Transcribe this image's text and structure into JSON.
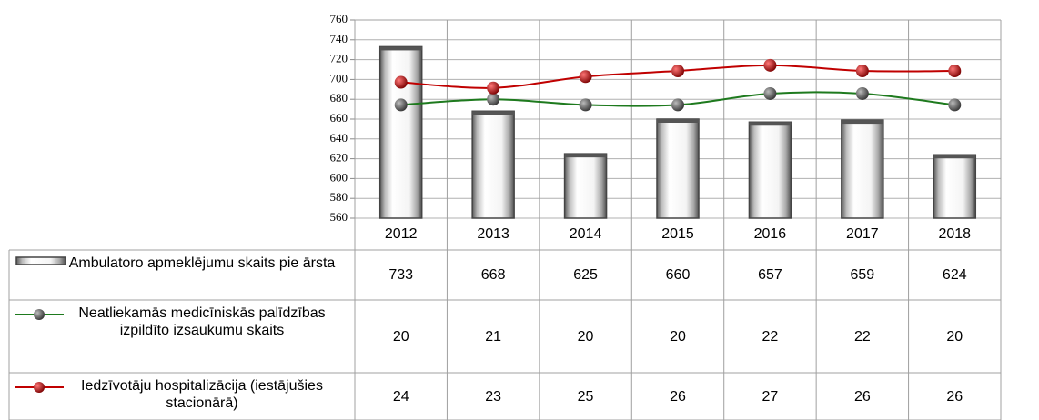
{
  "chart_data": {
    "type": "combo",
    "categories": [
      "2012",
      "2013",
      "2014",
      "2015",
      "2016",
      "2017",
      "2018"
    ],
    "series": [
      {
        "name": "Ambulatoro apmeklējumu skaits pie ārsta",
        "type": "bar",
        "color": "#808080",
        "values": [
          733,
          668,
          625,
          660,
          657,
          659,
          624
        ]
      },
      {
        "name": "Neatliekamās medicīniskās palīdzības izpildīto izsaukumu skaits",
        "type": "line",
        "axis": "y2",
        "color": "#1e7a1e",
        "marker_color": "#555555",
        "values": [
          20,
          21,
          20,
          20,
          22,
          22,
          20
        ]
      },
      {
        "name": "Iedzīvotāju hospitalizācija (iestājušies stacionārā)",
        "type": "line",
        "axis": "y2",
        "color": "#c00000",
        "marker_color": "#cc0000",
        "values": [
          24,
          23,
          25,
          26,
          27,
          26,
          26
        ]
      }
    ],
    "ylim": [
      560,
      760
    ],
    "yticks": [
      560,
      580,
      600,
      620,
      640,
      660,
      680,
      700,
      720,
      740,
      760
    ],
    "y2lim": [
      0,
      35
    ],
    "grid": true
  }
}
